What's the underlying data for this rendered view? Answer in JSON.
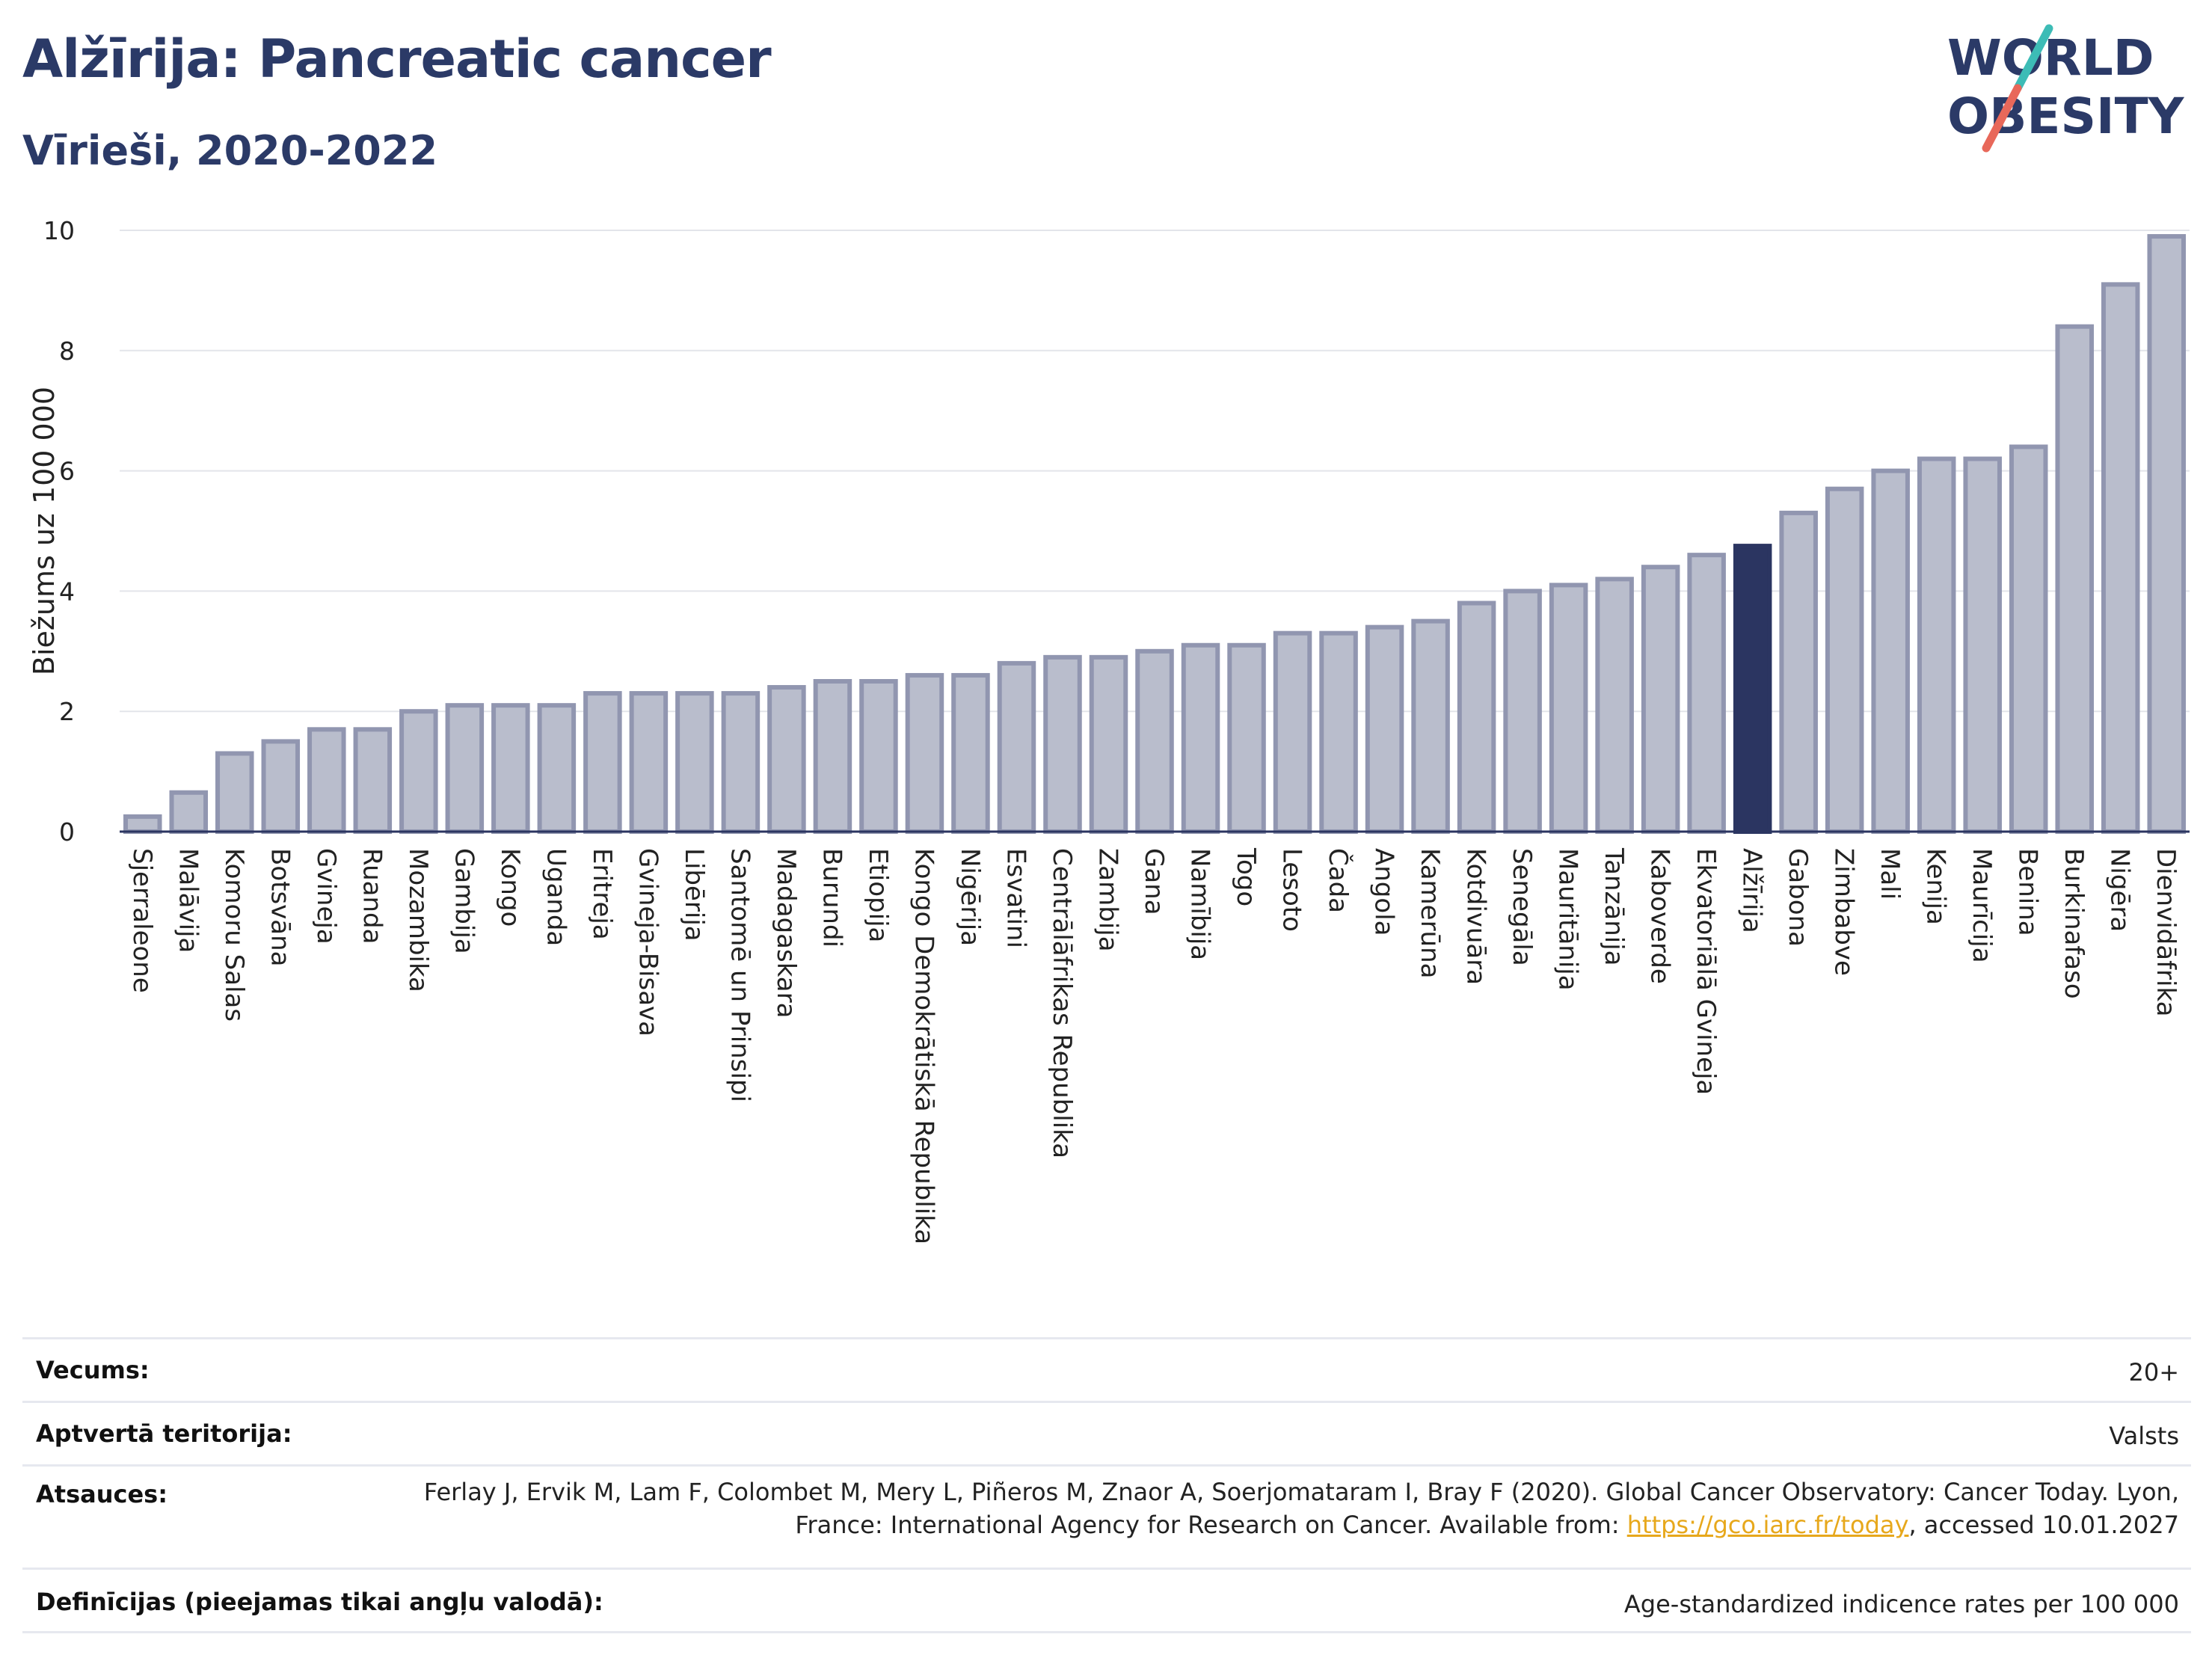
{
  "header": {
    "title": "Alžīrija: Pancreatic cancer",
    "subtitle": "Vīrieši, 2020-2022",
    "logo_line1": "WORLD",
    "logo_line2": "OBESITY"
  },
  "colors": {
    "bar": "#b9bdcc",
    "bar_border": "#9196b0",
    "highlight": "#2b3561",
    "title": "#2b3a67",
    "link": "#e7a81c",
    "logo_teal": "#3dbcb6",
    "logo_red": "#e8685a"
  },
  "chart_data": {
    "type": "bar",
    "title": "",
    "ylabel": "Biežums uz 100 000",
    "xlabel": "",
    "ylim": [
      0,
      10
    ],
    "yticks": [
      0,
      2,
      4,
      6,
      8,
      10
    ],
    "grid": true,
    "highlight": "Alžīrija",
    "categories": [
      "Sjerraleone",
      "Malāvija",
      "Komoru Salas",
      "Botsvāna",
      "Gvineja",
      "Ruanda",
      "Mozambika",
      "Gambija",
      "Kongo",
      "Uganda",
      "Eritreja",
      "Gvineja-Bisava",
      "Libērija",
      "Santomē un Prinsipi",
      "Madagaskara",
      "Burundi",
      "Etiopija",
      "Kongo Demokrātiskā Republika",
      "Nigērija",
      "Esvatini",
      "Centrālāfrikas Republika",
      "Zambija",
      "Gana",
      "Namībija",
      "Togo",
      "Lesoto",
      "Čada",
      "Angola",
      "Kamerūna",
      "Kotdivuāra",
      "Senegāla",
      "Mauritānija",
      "Tanzānija",
      "Kaboverde",
      "Ekvatoriālā Gvineja",
      "Alžīrija",
      "Gabona",
      "Zimbabve",
      "Mali",
      "Kenija",
      "Maurīcija",
      "Benina",
      "Burkinafaso",
      "Nigēra",
      "Dienvidāfrika"
    ],
    "values": [
      0.25,
      0.65,
      1.3,
      1.5,
      1.7,
      1.7,
      2.0,
      2.1,
      2.1,
      2.1,
      2.3,
      2.3,
      2.3,
      2.3,
      2.4,
      2.5,
      2.5,
      2.6,
      2.6,
      2.8,
      2.9,
      2.9,
      3.0,
      3.1,
      3.1,
      3.3,
      3.3,
      3.4,
      3.5,
      3.8,
      4.0,
      4.1,
      4.2,
      4.4,
      4.6,
      4.75,
      5.3,
      5.7,
      6.0,
      6.2,
      6.2,
      6.4,
      8.4,
      9.1,
      9.9
    ]
  },
  "info": {
    "age_label": "Vecums:",
    "age_value": "20+",
    "coverage_label": "Aptvertā teritorija:",
    "coverage_value": "Valsts",
    "refs_label": "Atsauces:",
    "refs_text_1": "Ferlay J, Ervik M, Lam F, Colombet M, Mery L, Piñeros M, Znaor A, Soerjomataram I, Bray F (2020). Global Cancer Observatory: Cancer Today. Lyon, France: International Agency for Research on Cancer. Available from: ",
    "refs_link": "https://gco.iarc.fr/today",
    "refs_text_2": ", accessed 10.01.2027",
    "defs_label": "Definīcijas (pieejamas tikai angļu valodā):",
    "defs_value": "Age-standardized indicence rates per 100 000"
  }
}
